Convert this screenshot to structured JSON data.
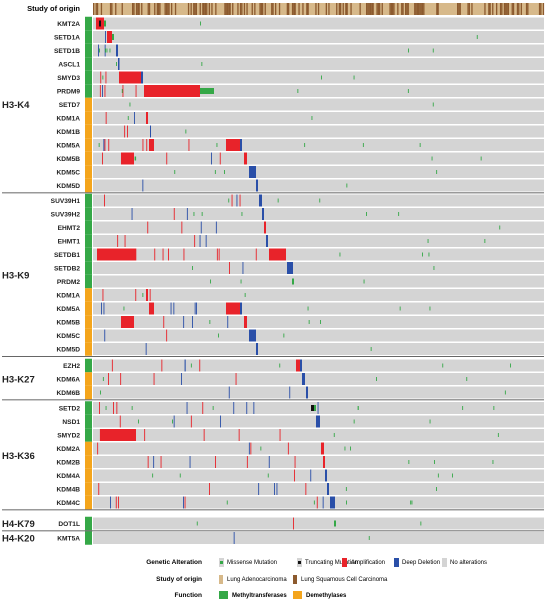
{
  "chart_data": {
    "type": "heatmap",
    "title": "",
    "header_track": "Study of origin",
    "groups": [
      {
        "label": "H3-K4",
        "genes": [
          "KMT2A",
          "SETD1A",
          "SETD1B",
          "ASCL1",
          "SMYD3",
          "PRDM9",
          "SETD7",
          "KDM1A",
          "KDM1B",
          "KDM5A",
          "KDM5B",
          "KDM5C",
          "KDM5D"
        ]
      },
      {
        "label": "H3-K9",
        "genes": [
          "SUV39H1",
          "SUV39H2",
          "EHMT2",
          "EHMT1",
          "SETDB1",
          "SETDB2",
          "PRDM2",
          "KDM1A",
          "KDM5A",
          "KDM5B",
          "KDM5C",
          "KDM5D"
        ]
      },
      {
        "label": "H3-K27",
        "genes": [
          "EZH2",
          "KDM6A",
          "KDM6B"
        ]
      },
      {
        "label": "H3-K36",
        "genes": [
          "SETD2",
          "NSD1",
          "SMYD2",
          "KDM2A",
          "KDM2B",
          "KDM4A",
          "KDM4B",
          "KDM4C"
        ]
      },
      {
        "label": "H4-K79",
        "genes": [
          "DOT1L"
        ]
      },
      {
        "label": "H4-K20",
        "genes": [
          "KMT5A"
        ]
      }
    ],
    "function_by_gene": {
      "KMT2A": "M",
      "SETD1A": "M",
      "SETD1B": "M",
      "ASCL1": "M",
      "SMYD3": "M",
      "PRDM9": "M",
      "SETD7": "D",
      "KDM1A": "D",
      "KDM1B": "D",
      "KDM5A": "D",
      "KDM5B": "D",
      "KDM5C": "D",
      "KDM5D": "D",
      "SUV39H1": "M",
      "SUV39H2": "M",
      "EHMT2": "M",
      "EHMT1": "M",
      "SETDB1": "M",
      "SETDB2": "M",
      "PRDM2": "M",
      "EZH2": "M",
      "KDM6A": "D",
      "KDM6B": "D",
      "SETD2": "M",
      "NSD1": "M",
      "SMYD2": "M",
      "KDM2A": "D",
      "KDM2B": "D",
      "KDM4A": "D",
      "KDM4B": "D",
      "KDM4C": "D",
      "DOT1L": "M",
      "KMT5A": "M"
    },
    "legend": {
      "genetic_alteration": {
        "label": "Genetic Alteration",
        "items": [
          "Missense Mutation",
          "Truncating Mutation",
          "Amplification",
          "Deep Deletion",
          "No alterations"
        ]
      },
      "study_of_origin": {
        "label": "Study of origin",
        "items": [
          "Lung Adenocarcinoma",
          "Lung Squamous Cell Carcinoma"
        ]
      },
      "function": {
        "label": "Function",
        "items": [
          "Methyltransferases",
          "Demethylases"
        ]
      }
    },
    "colors": {
      "amplification": "#e8232a",
      "deep_deletion": "#2a4fa8",
      "missense": "#35a847",
      "truncating": "#111111",
      "no_alteration": "#d4d4d4",
      "study_luad": "#d7b98a",
      "study_lusc": "#8c5a2e",
      "methyltransferases": "#35a847",
      "demethylases": "#f4a51c"
    }
  }
}
